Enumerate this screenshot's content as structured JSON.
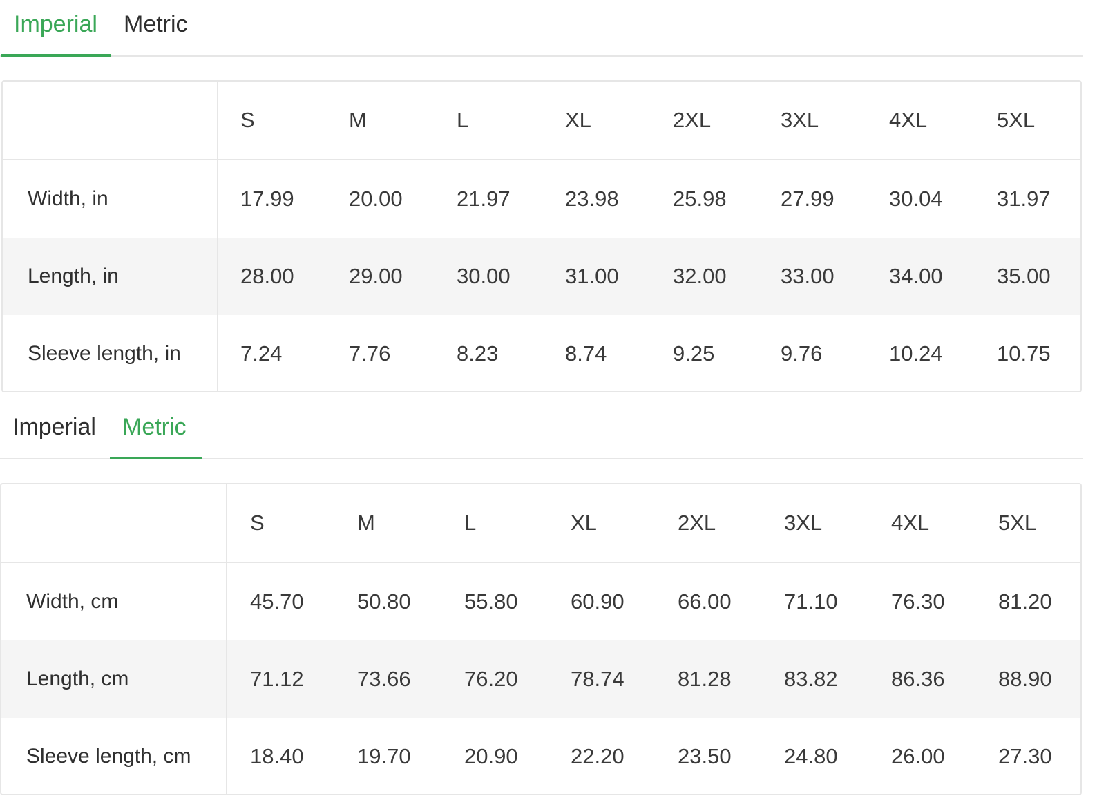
{
  "imperial_section": {
    "tabs": [
      {
        "label": "Imperial",
        "active": true
      },
      {
        "label": "Metric",
        "active": false
      }
    ],
    "table": {
      "sizes": [
        "S",
        "M",
        "L",
        "XL",
        "2XL",
        "3XL",
        "4XL",
        "5XL"
      ],
      "rows": [
        {
          "label": "Width, in",
          "values": [
            "17.99",
            "20.00",
            "21.97",
            "23.98",
            "25.98",
            "27.99",
            "30.04",
            "31.97"
          ]
        },
        {
          "label": "Length, in",
          "values": [
            "28.00",
            "29.00",
            "30.00",
            "31.00",
            "32.00",
            "33.00",
            "34.00",
            "35.00"
          ]
        },
        {
          "label": "Sleeve length, in",
          "values": [
            "7.24",
            "7.76",
            "8.23",
            "8.74",
            "9.25",
            "9.76",
            "10.24",
            "10.75"
          ]
        }
      ]
    }
  },
  "metric_section": {
    "tabs": [
      {
        "label": "Imperial",
        "active": false
      },
      {
        "label": "Metric",
        "active": true
      }
    ],
    "table": {
      "sizes": [
        "S",
        "M",
        "L",
        "XL",
        "2XL",
        "3XL",
        "4XL",
        "5XL"
      ],
      "rows": [
        {
          "label": "Width, cm",
          "values": [
            "45.70",
            "50.80",
            "55.80",
            "60.90",
            "66.00",
            "71.10",
            "76.30",
            "81.20"
          ]
        },
        {
          "label": "Length, cm",
          "values": [
            "71.12",
            "73.66",
            "76.20",
            "78.74",
            "81.28",
            "83.82",
            "86.36",
            "88.90"
          ]
        },
        {
          "label": "Sleeve length, cm",
          "values": [
            "18.40",
            "19.70",
            "20.90",
            "22.20",
            "23.50",
            "24.80",
            "26.00",
            "27.30"
          ]
        }
      ]
    }
  },
  "colors": {
    "accent": "#3aa757",
    "border": "#e6e6e6",
    "row_shade": "#f5f5f5"
  }
}
